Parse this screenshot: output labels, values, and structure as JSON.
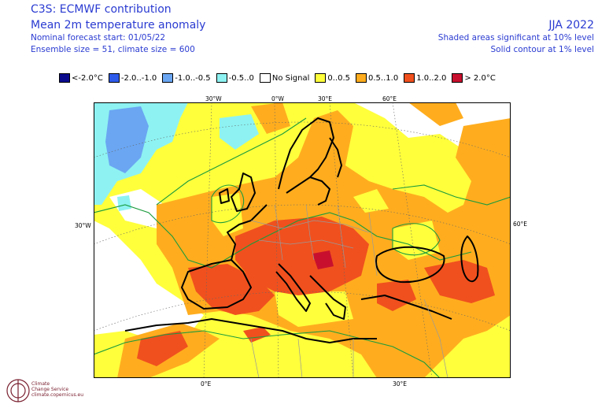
{
  "header": {
    "title": "C3S: ECMWF contribution",
    "subtitle": "Mean 2m temperature anomaly",
    "forecast_start": "Nominal forecast start: 01/05/22",
    "ensemble": "Ensemble size = 51, climate size = 600",
    "period": "JJA 2022",
    "sig_shaded": "Shaded areas significant at 10% level",
    "sig_contour": "Solid contour at 1% level"
  },
  "legend": [
    {
      "label": "<-2.0°C",
      "color": "#0a0a8c"
    },
    {
      "label": "-2.0..-1.0",
      "color": "#2f5bea"
    },
    {
      "label": "-1.0..-0.5",
      "color": "#6aa6f2"
    },
    {
      "label": "-0.5..0",
      "color": "#8ef2f2"
    },
    {
      "label": "No Signal",
      "color": "#ffffff"
    },
    {
      "label": "0..0.5",
      "color": "#ffff3c"
    },
    {
      "label": "0.5..1.0",
      "color": "#ffad1e"
    },
    {
      "label": "1.0..2.0",
      "color": "#f0501e"
    },
    {
      "label": "> 2.0°C",
      "color": "#c8102e"
    }
  ],
  "map_labels": {
    "top": [
      "30°W",
      "0°W",
      "30°E",
      "60°E"
    ],
    "left": "30°W",
    "right": "60°E",
    "bottom": [
      "0°E",
      "30°E"
    ]
  },
  "logo": {
    "line1": "Climate",
    "line2": "Change Service",
    "line3": "climate.copernicus.eu"
  }
}
